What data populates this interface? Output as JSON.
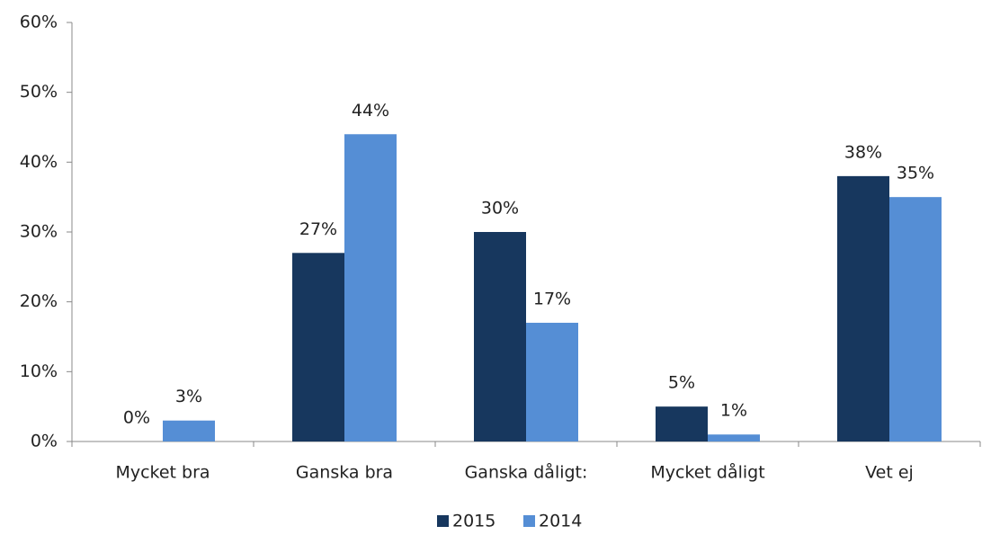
{
  "chart_data": {
    "type": "bar",
    "categories": [
      "Mycket bra",
      "Ganska bra",
      "Ganska dåligt:",
      "Mycket dåligt",
      "Vet ej"
    ],
    "series": [
      {
        "name": "2015",
        "color": "#17375e",
        "values": [
          0,
          27,
          30,
          5,
          38
        ],
        "value_labels": [
          "0%",
          "27%",
          "30%",
          "5%",
          "38%"
        ]
      },
      {
        "name": "2014",
        "color": "#558ed5",
        "values": [
          3,
          44,
          17,
          1,
          35
        ],
        "value_labels": [
          "3%",
          "44%",
          "17%",
          "1%",
          "35%"
        ]
      }
    ],
    "ylim": [
      0,
      60
    ],
    "yticks": [
      {
        "value": 0,
        "label": "0%"
      },
      {
        "value": 10,
        "label": "10%"
      },
      {
        "value": 20,
        "label": "20%"
      },
      {
        "value": 30,
        "label": "30%"
      },
      {
        "value": 40,
        "label": "40%"
      },
      {
        "value": 50,
        "label": "50%"
      },
      {
        "value": 60,
        "label": "60%"
      }
    ],
    "grid": false,
    "legend": "bottom"
  }
}
